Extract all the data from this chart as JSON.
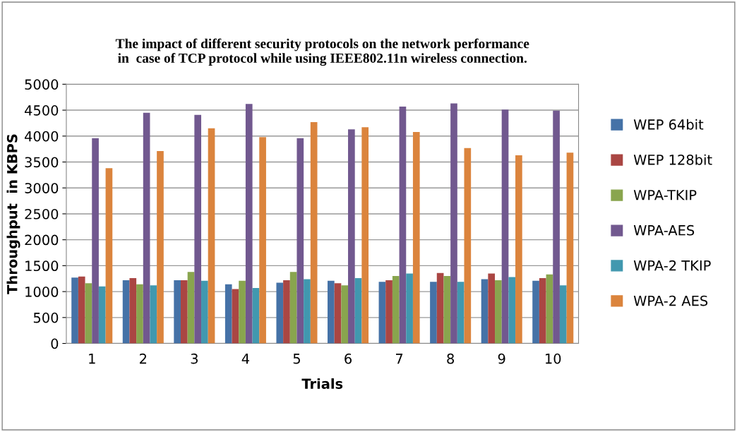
{
  "chart_data": {
    "type": "bar",
    "title": "The impact of different security protocols on the network performance\nin  case of TCP protocol while using IEEE802.11n wireless connection.",
    "xlabel": "Trials",
    "ylabel": "Throughput  in KBPS",
    "categories": [
      "1",
      "2",
      "3",
      "4",
      "5",
      "6",
      "7",
      "8",
      "9",
      "10"
    ],
    "ylim": [
      0,
      5000
    ],
    "yticks": [
      0,
      500,
      1000,
      1500,
      2000,
      2500,
      3000,
      3500,
      4000,
      4500,
      5000
    ],
    "grid": "y",
    "legend": "right",
    "series": [
      {
        "name": "WEP 64bit",
        "color": "#4572a7",
        "values": [
          1270,
          1220,
          1220,
          1140,
          1170,
          1210,
          1190,
          1190,
          1240,
          1210
        ]
      },
      {
        "name": "WEP 128bit",
        "color": "#aa4643",
        "values": [
          1290,
          1260,
          1220,
          1050,
          1220,
          1160,
          1220,
          1360,
          1350,
          1260
        ]
      },
      {
        "name": "WPA-TKIP",
        "color": "#89a54e",
        "values": [
          1160,
          1140,
          1380,
          1210,
          1380,
          1120,
          1300,
          1300,
          1220,
          1330
        ]
      },
      {
        "name": "WPA-AES",
        "color": "#71588f",
        "values": [
          3960,
          4450,
          4410,
          4620,
          3960,
          4130,
          4570,
          4630,
          4510,
          4490
        ]
      },
      {
        "name": "WPA-2 TKIP",
        "color": "#4198af",
        "values": [
          1100,
          1120,
          1210,
          1070,
          1240,
          1260,
          1350,
          1190,
          1280,
          1120
        ]
      },
      {
        "name": "WPA-2 AES",
        "color": "#db843d",
        "values": [
          3380,
          3710,
          4150,
          3980,
          4270,
          4170,
          4080,
          3770,
          3630,
          3680
        ]
      }
    ]
  }
}
